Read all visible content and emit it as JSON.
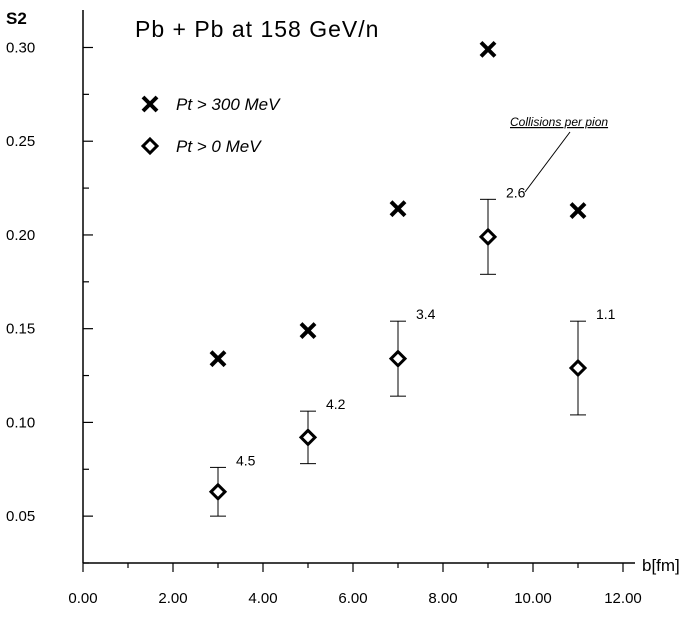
{
  "chart_data": {
    "type": "scatter",
    "title": "Pb + Pb at 158 GeV/n",
    "xlabel": "b[fm]",
    "ylabel": "S2",
    "xlim": [
      0,
      12
    ],
    "ylim": [
      0.025,
      0.32
    ],
    "x_ticks": [
      0,
      2,
      4,
      6,
      8,
      10,
      12
    ],
    "x_tick_labels": [
      "0.00",
      "2.00",
      "4.00",
      "6.00",
      "8.00",
      "10.00",
      "12.00"
    ],
    "y_ticks": [
      0.05,
      0.1,
      0.15,
      0.2,
      0.25,
      0.3
    ],
    "y_tick_labels": [
      "0.05",
      "0.10",
      "0.15",
      "0.20",
      "0.25",
      "0.30"
    ],
    "grid": false,
    "legend_position": "top-left",
    "series": [
      {
        "name": "Pt > 300 MeV",
        "marker": "cross",
        "x": [
          3,
          5,
          7,
          9,
          11
        ],
        "y": [
          0.134,
          0.149,
          0.214,
          0.299,
          0.213
        ]
      },
      {
        "name": "Pt > 0 MeV",
        "marker": "diamond",
        "x": [
          3,
          5,
          7,
          9,
          11
        ],
        "y": [
          0.063,
          0.092,
          0.134,
          0.199,
          0.129
        ],
        "err_low": [
          0.05,
          0.078,
          0.114,
          0.179,
          0.104
        ],
        "err_high": [
          0.076,
          0.106,
          0.154,
          0.219,
          0.154
        ],
        "labels": [
          "4.5",
          "4.2",
          "3.4",
          "2.6",
          "1.1"
        ]
      }
    ],
    "annotation": "Collisions per pion"
  }
}
